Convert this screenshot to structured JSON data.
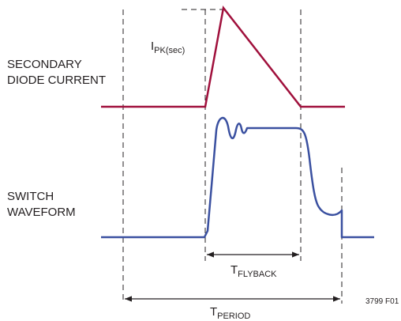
{
  "labels": {
    "secondary_line1": "SECONDARY",
    "secondary_line2": "DIODE CURRENT",
    "switch_line1": "SWITCH",
    "switch_line2": "WAVEFORM",
    "ipk_main": "I",
    "ipk_sub": "PK(sec)",
    "tflyback_main": "T",
    "tflyback_sub": "FLYBACK",
    "tperiod_main": "T",
    "tperiod_sub": "PERIOD",
    "figure_id": "3799 F01"
  },
  "colors": {
    "diode_current": "#a0103c",
    "switch_waveform": "#3a50a0",
    "guides": "#231f20"
  }
}
